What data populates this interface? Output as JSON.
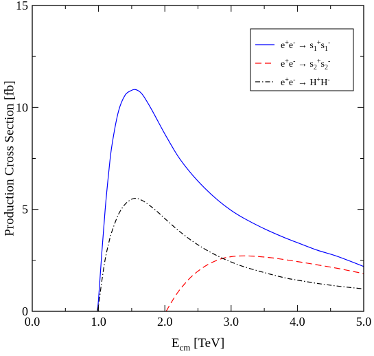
{
  "chart_data": {
    "type": "line",
    "xlabel": "E",
    "xlabel_sub": "cm",
    "xlabel_unit": "[TeV]",
    "ylabel": "Production Cross Section [fb]",
    "xlim": [
      0.0,
      5.0
    ],
    "ylim": [
      0,
      15
    ],
    "x_ticks": [
      0.0,
      1.0,
      2.0,
      3.0,
      4.0,
      5.0
    ],
    "x_tick_labels": [
      "0.0",
      "1.0",
      "2.0",
      "3.0",
      "4.0",
      "5.0"
    ],
    "y_ticks": [
      0,
      5,
      10,
      15
    ],
    "y_tick_labels": [
      "0",
      "5",
      "10",
      "15"
    ],
    "grid": false,
    "legend_position": "top-right",
    "series": [
      {
        "name": "e⁺e⁻ → s₁⁺s₁⁻",
        "legend_parts": [
          [
            "e",
            ""
          ],
          [
            "+",
            "sup"
          ],
          [
            "e",
            ""
          ],
          [
            "-",
            "sup"
          ],
          [
            " → s",
            ""
          ],
          [
            "1",
            "sub"
          ],
          [
            "+",
            "sup"
          ],
          [
            "s",
            ""
          ],
          [
            "1",
            "sub"
          ],
          [
            "-",
            "sup"
          ]
        ],
        "color": "#0000ff",
        "dash": "solid",
        "x": [
          0.98,
          1.0,
          1.05,
          1.1,
          1.15,
          1.2,
          1.3,
          1.4,
          1.5,
          1.55,
          1.6,
          1.65,
          1.7,
          1.8,
          1.9,
          2.0,
          2.2,
          2.4,
          2.6,
          2.8,
          3.0,
          3.2,
          3.5,
          3.8,
          4.0,
          4.3,
          4.6,
          5.0
        ],
        "y": [
          0,
          0.6,
          2.9,
          5.0,
          6.7,
          8.1,
          9.8,
          10.6,
          10.84,
          10.88,
          10.82,
          10.68,
          10.45,
          9.9,
          9.3,
          8.7,
          7.6,
          6.75,
          6.05,
          5.45,
          4.95,
          4.55,
          4.05,
          3.62,
          3.37,
          3.0,
          2.7,
          2.2
        ]
      },
      {
        "name": "e⁺e⁻ → s₂⁺s₂⁻",
        "legend_parts": [
          [
            "e",
            ""
          ],
          [
            "+",
            "sup"
          ],
          [
            "e",
            ""
          ],
          [
            "-",
            "sup"
          ],
          [
            " → s",
            ""
          ],
          [
            "2",
            "sub"
          ],
          [
            "+",
            "sup"
          ],
          [
            "s",
            ""
          ],
          [
            "2",
            "sub"
          ],
          [
            "-",
            "sup"
          ]
        ],
        "color": "#ff0000",
        "dash": "dashed",
        "x": [
          2.02,
          2.1,
          2.2,
          2.3,
          2.4,
          2.5,
          2.6,
          2.7,
          2.8,
          2.9,
          3.0,
          3.1,
          3.2,
          3.3,
          3.4,
          3.6,
          3.8,
          4.0,
          4.3,
          4.6,
          5.0
        ],
        "y": [
          0,
          0.45,
          0.95,
          1.35,
          1.7,
          1.97,
          2.2,
          2.38,
          2.52,
          2.62,
          2.68,
          2.71,
          2.72,
          2.71,
          2.69,
          2.63,
          2.54,
          2.44,
          2.28,
          2.11,
          1.85
        ]
      },
      {
        "name": "e⁺e⁻ → H⁺H⁻",
        "legend_parts": [
          [
            "e",
            ""
          ],
          [
            "+",
            "sup"
          ],
          [
            "e",
            ""
          ],
          [
            "-",
            "sup"
          ],
          [
            " → H",
            ""
          ],
          [
            "+",
            "sup"
          ],
          [
            "H",
            ""
          ],
          [
            "-",
            "sup"
          ]
        ],
        "color": "#000000",
        "dash": "dashdot",
        "x": [
          0.98,
          1.0,
          1.05,
          1.1,
          1.15,
          1.2,
          1.3,
          1.4,
          1.5,
          1.55,
          1.6,
          1.65,
          1.7,
          1.8,
          1.9,
          2.0,
          2.2,
          2.4,
          2.6,
          2.8,
          3.0,
          3.2,
          3.5,
          3.8,
          4.0,
          4.3,
          4.6,
          5.0
        ],
        "y": [
          0,
          0.3,
          1.5,
          2.55,
          3.3,
          3.9,
          4.75,
          5.25,
          5.5,
          5.54,
          5.52,
          5.45,
          5.36,
          5.12,
          4.85,
          4.55,
          3.98,
          3.48,
          3.06,
          2.71,
          2.42,
          2.18,
          1.9,
          1.65,
          1.53,
          1.37,
          1.24,
          1.1
        ]
      }
    ]
  }
}
